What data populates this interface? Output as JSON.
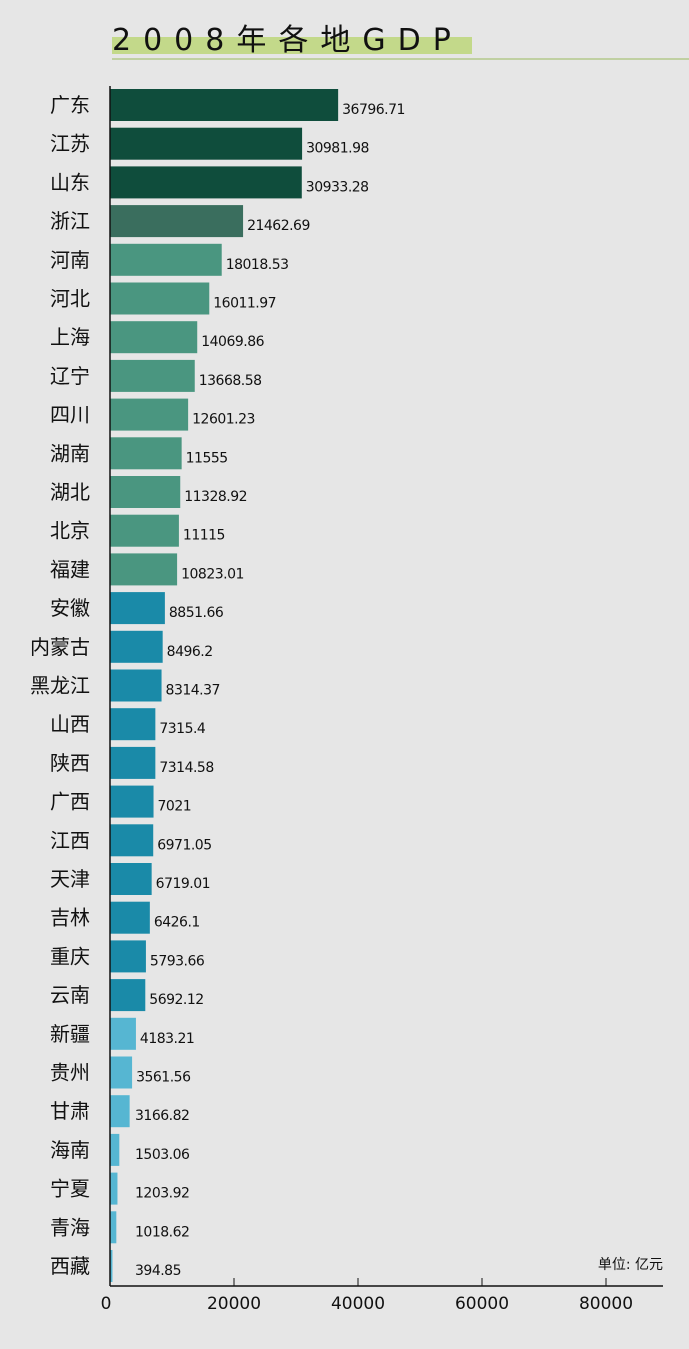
{
  "chart_data": {
    "type": "bar",
    "orientation": "horizontal",
    "title": "2008年各地GDP",
    "unit_label": "单位: 亿元",
    "xlim": [
      0,
      89000
    ],
    "xticks": [
      0,
      20000,
      40000,
      60000,
      80000
    ],
    "tick_labels": [
      "0",
      "20000",
      "40000",
      "60000",
      "80000"
    ],
    "grid": false,
    "categories": [
      "广东",
      "江苏",
      "山东",
      "浙江",
      "河南",
      "河北",
      "上海",
      "辽宁",
      "四川",
      "湖南",
      "湖北",
      "北京",
      "福建",
      "安徽",
      "内蒙古",
      "黑龙江",
      "山西",
      "陕西",
      "广西",
      "江西",
      "天津",
      "吉林",
      "重庆",
      "云南",
      "新疆",
      "贵州",
      "甘肃",
      "海南",
      "宁夏",
      "青海",
      "西藏"
    ],
    "values": [
      36796.71,
      30981.98,
      30933.28,
      21462.69,
      18018.53,
      16011.97,
      14069.86,
      13668.58,
      12601.23,
      11555,
      11328.92,
      11115,
      10823.01,
      8851.66,
      8496.2,
      8314.37,
      7315.4,
      7314.58,
      7021,
      6971.05,
      6719.01,
      6426.1,
      5793.66,
      5692.12,
      4183.21,
      3561.56,
      3166.82,
      1503.06,
      1203.92,
      1018.62,
      394.85
    ],
    "value_labels": [
      "36796.71",
      "30981.98",
      "30933.28",
      "21462.69",
      "18018.53",
      "16011.97",
      "14069.86",
      "13668.58",
      "12601.23",
      "11555",
      "11328.92",
      "11115",
      "10823.01",
      "8851.66",
      "8496.2",
      "8314.37",
      "7315.4",
      "7314.58",
      "7021",
      "6971.05",
      "6719.01",
      "6426.1",
      "5793.66",
      "5692.12",
      "4183.21",
      "3561.56",
      "3166.82",
      "1503.06",
      "1203.92",
      "1018.62",
      "394.85"
    ],
    "color_groups": [
      "#0f4d3c",
      "#0f4d3c",
      "#0f4d3c",
      "#3a6e5e",
      "#4a9680",
      "#4a9680",
      "#4a9680",
      "#4a9680",
      "#4a9680",
      "#4a9680",
      "#4a9680",
      "#4a9680",
      "#4a9680",
      "#1a8aa8",
      "#1a8aa8",
      "#1a8aa8",
      "#1a8aa8",
      "#1a8aa8",
      "#1a8aa8",
      "#1a8aa8",
      "#1a8aa8",
      "#1a8aa8",
      "#1a8aa8",
      "#1a8aa8",
      "#56b6d2",
      "#56b6d2",
      "#56b6d2",
      "#56b6d2",
      "#56b6d2",
      "#56b6d2",
      "#56b6d2"
    ],
    "title_highlight_color": "#c3d98a",
    "background": "#e6e6e6"
  }
}
